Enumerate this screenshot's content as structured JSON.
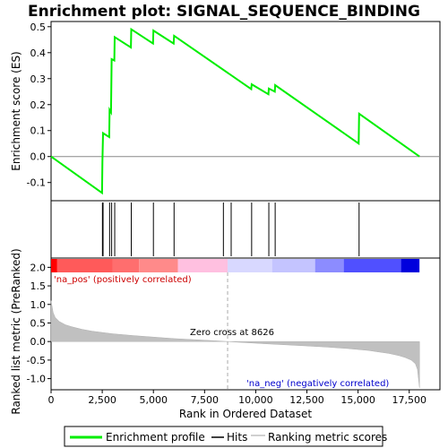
{
  "chart_data": {
    "type": "line",
    "title": "Enrichment plot: SIGNAL_SEQUENCE_BINDING",
    "top_panel": {
      "ylabel": "Enrichment score (ES)",
      "ylim": [
        -0.17,
        0.52
      ],
      "yticks": [
        -0.1,
        0.0,
        0.1,
        0.2,
        0.3,
        0.4,
        0.5
      ],
      "ytick_labels": [
        "-0.1",
        "0.0",
        "0.1",
        "0.2",
        "0.3",
        "0.4",
        "0.5"
      ],
      "series": [
        {
          "name": "Enrichment profile",
          "color": "#00ee00",
          "x": [
            0,
            2490,
            2510,
            2540,
            2840,
            2860,
            2930,
            2960,
            3090,
            3110,
            3900,
            3920,
            4980,
            5000,
            5990,
            6010,
            9780,
            9800,
            10620,
            10640,
            10930,
            10950,
            15030,
            15050,
            18000
          ],
          "y": [
            0.0,
            -0.14,
            -0.02,
            0.09,
            0.075,
            0.18,
            0.17,
            0.375,
            0.37,
            0.46,
            0.42,
            0.49,
            0.435,
            0.485,
            0.435,
            0.465,
            0.26,
            0.278,
            0.24,
            0.262,
            0.25,
            0.275,
            0.05,
            0.165,
            0.0
          ]
        }
      ]
    },
    "hits": {
      "name": "Hits",
      "x": [
        2510,
        2540,
        2860,
        2960,
        3110,
        3920,
        5000,
        6010,
        8420,
        8800,
        9800,
        10640,
        10950,
        15050
      ]
    },
    "color_bar": {
      "segments": [
        {
          "x0": 0,
          "x1": 300,
          "color": "#ff0000"
        },
        {
          "x0": 300,
          "x1": 3000,
          "color": "#ff5a5a"
        },
        {
          "x0": 3000,
          "x1": 4300,
          "color": "#ff6e6e"
        },
        {
          "x0": 4300,
          "x1": 6200,
          "color": "#ff8a8a"
        },
        {
          "x0": 6200,
          "x1": 8626,
          "color": "#ffc0e0"
        },
        {
          "x0": 8626,
          "x1": 10800,
          "color": "#d8d8ff"
        },
        {
          "x0": 10800,
          "x1": 12900,
          "color": "#c4c4ff"
        },
        {
          "x0": 12900,
          "x1": 14300,
          "color": "#8c8cff"
        },
        {
          "x0": 14300,
          "x1": 17100,
          "color": "#5050ff"
        },
        {
          "x0": 17100,
          "x1": 18000,
          "color": "#0000dd"
        }
      ]
    },
    "bottom_panel": {
      "ylabel": "Ranked list metric (PreRanked)",
      "xlabel": "Rank in Ordered Dataset",
      "ylim": [
        -1.3,
        2.25
      ],
      "yticks": [
        -1.0,
        -0.5,
        0.0,
        0.5,
        1.0,
        1.5,
        2.0
      ],
      "ytick_labels": [
        "-1.0",
        "-0.5",
        "0.0",
        "0.5",
        "1.0",
        "1.5",
        "2.0"
      ],
      "xlim": [
        0,
        19000
      ],
      "xticks": [
        0,
        2500,
        5000,
        7500,
        10000,
        12500,
        15000,
        17500
      ],
      "xtick_labels": [
        "0",
        "2,500",
        "5,000",
        "7,500",
        "10,000",
        "12,500",
        "15,000",
        "17,500"
      ],
      "metric_x": [
        0,
        100,
        200,
        400,
        700,
        1000,
        1500,
        2000,
        3000,
        4000,
        5000,
        6000,
        7000,
        8000,
        8626,
        9500,
        10500,
        11500,
        12500,
        13500,
        14500,
        15500,
        16000,
        16500,
        17000,
        17300,
        17600,
        17800,
        17900,
        18000
      ],
      "metric_y": [
        1.1,
        0.78,
        0.65,
        0.54,
        0.45,
        0.4,
        0.33,
        0.28,
        0.21,
        0.16,
        0.12,
        0.08,
        0.05,
        0.02,
        0.0,
        -0.03,
        -0.06,
        -0.09,
        -0.12,
        -0.15,
        -0.19,
        -0.24,
        -0.28,
        -0.32,
        -0.38,
        -0.43,
        -0.5,
        -0.6,
        -0.75,
        -1.25
      ],
      "zero_cross": 8626,
      "zero_cross_label": "Zero cross at 8626",
      "pos_label": "'na_pos' (positively correlated)",
      "neg_label": "'na_neg' (negatively correlated)",
      "pos_color": "#cc0000",
      "neg_color": "#0000cc"
    },
    "legend": [
      {
        "label": "Enrichment profile",
        "color": "#00ee00",
        "style": "line"
      },
      {
        "label": "Hits",
        "color": "#000000",
        "style": "line"
      },
      {
        "label": "Ranking metric scores",
        "color": "#c0c0c0",
        "style": "line"
      }
    ]
  }
}
